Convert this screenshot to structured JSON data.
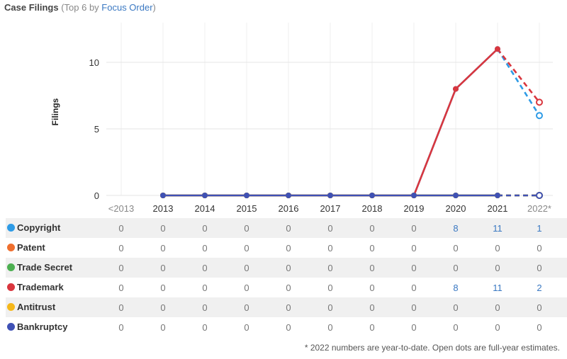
{
  "header": {
    "title": "Case Filings",
    "subtitle_prefix": "(Top 6 by ",
    "subtitle_link": "Focus Order",
    "subtitle_suffix": ")"
  },
  "footnote": "* 2022 numbers are year-to-date. Open dots are full-year estimates.",
  "chart_data": {
    "type": "line",
    "ylabel": "Filings",
    "yticks": [
      0,
      5,
      10
    ],
    "ylim": [
      0,
      11.5
    ],
    "categories": [
      "<2013",
      "2013",
      "2014",
      "2015",
      "2016",
      "2017",
      "2018",
      "2019",
      "2020",
      "2021",
      "2022*"
    ],
    "estimate_category": "2022*",
    "series": [
      {
        "name": "Copyright",
        "color": "#2e9be6",
        "values": [
          0,
          0,
          0,
          0,
          0,
          0,
          0,
          0,
          8,
          11,
          1
        ],
        "estimate": 6
      },
      {
        "name": "Patent",
        "color": "#ef6f2e",
        "values": [
          0,
          0,
          0,
          0,
          0,
          0,
          0,
          0,
          0,
          0,
          0
        ],
        "estimate": 0
      },
      {
        "name": "Trade Secret",
        "color": "#4caf50",
        "values": [
          0,
          0,
          0,
          0,
          0,
          0,
          0,
          0,
          0,
          0,
          0
        ],
        "estimate": 0
      },
      {
        "name": "Trademark",
        "color": "#d9363e",
        "values": [
          0,
          0,
          0,
          0,
          0,
          0,
          0,
          0,
          8,
          11,
          2
        ],
        "estimate": 7
      },
      {
        "name": "Antitrust",
        "color": "#f5b71a",
        "values": [
          0,
          0,
          0,
          0,
          0,
          0,
          0,
          0,
          0,
          0,
          0
        ],
        "estimate": 0
      },
      {
        "name": "Bankruptcy",
        "color": "#3f51b5",
        "values": [
          0,
          0,
          0,
          0,
          0,
          0,
          0,
          0,
          0,
          0,
          0
        ],
        "estimate": 0
      }
    ]
  }
}
